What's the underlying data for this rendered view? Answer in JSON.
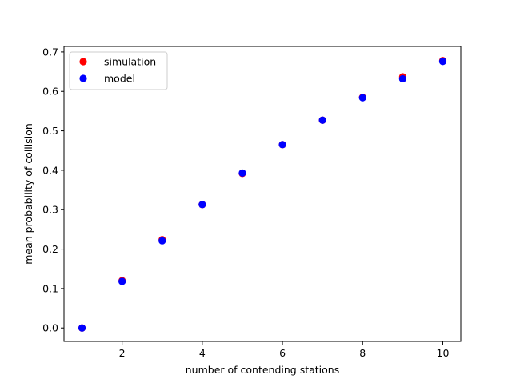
{
  "chart_data": {
    "type": "scatter",
    "xlabel": "number of contending stations",
    "ylabel": "mean probability of collision",
    "xlim": [
      0.55,
      10.45
    ],
    "ylim": [
      -0.034,
      0.714
    ],
    "xticks": [
      2,
      4,
      6,
      8,
      10
    ],
    "yticks": [
      0.0,
      0.1,
      0.2,
      0.3,
      0.4,
      0.5,
      0.6,
      0.7
    ],
    "x_tick_labels": [
      "2",
      "4",
      "6",
      "8",
      "10"
    ],
    "y_tick_labels": [
      "0.0",
      "0.1",
      "0.2",
      "0.3",
      "0.4",
      "0.5",
      "0.6",
      "0.7"
    ],
    "grid": false,
    "legend_position": "top-left",
    "x": [
      1,
      2,
      3,
      4,
      5,
      6,
      7,
      8,
      9,
      10
    ],
    "series": [
      {
        "name": "simulation",
        "color": "#ff0000",
        "values": [
          0.0,
          0.12,
          0.224,
          0.313,
          0.392,
          0.465,
          0.527,
          0.585,
          0.637,
          0.678
        ]
      },
      {
        "name": "model",
        "color": "#0000ff",
        "values": [
          0.0,
          0.118,
          0.221,
          0.313,
          0.393,
          0.465,
          0.527,
          0.584,
          0.632,
          0.676
        ]
      }
    ]
  }
}
